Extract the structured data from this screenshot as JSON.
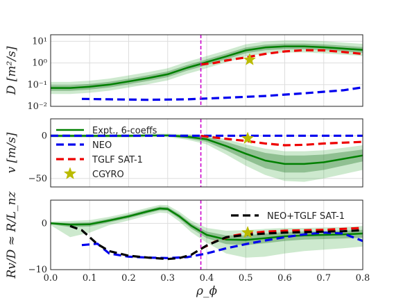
{
  "chart_data": [
    {
      "type": "line",
      "panel": "top",
      "ylabel": "D [m²/s]",
      "yscale": "log",
      "ylim": [
        0.01,
        20
      ],
      "yticks": [
        {
          "value": 10,
          "label": "10¹"
        },
        {
          "value": 1,
          "label": "10⁰"
        },
        {
          "value": 0.1,
          "label": "10⁻¹"
        },
        {
          "value": 0.01,
          "label": "10⁻²"
        }
      ],
      "xlim": [
        0.0,
        0.8
      ],
      "grid": true,
      "band_color": "#2e8b2e",
      "vline_x": 0.385,
      "series": [
        {
          "name": "Expt., 6-coeffs",
          "color": "#008000",
          "style": "solid",
          "x": [
            0.0,
            0.05,
            0.1,
            0.15,
            0.2,
            0.25,
            0.3,
            0.35,
            0.385,
            0.4,
            0.45,
            0.5,
            0.55,
            0.6,
            0.65,
            0.7,
            0.75,
            0.8
          ],
          "y": [
            0.07,
            0.07,
            0.08,
            0.1,
            0.14,
            0.2,
            0.3,
            0.6,
            0.9,
            1.1,
            2.0,
            3.8,
            5.2,
            5.8,
            5.8,
            5.3,
            4.6,
            4.0
          ],
          "band_inner_factor": 1.35,
          "band_outer_factor": 1.9
        },
        {
          "name": "NEO",
          "color": "#0000ee",
          "style": "dashed",
          "x": [
            0.08,
            0.15,
            0.25,
            0.35,
            0.45,
            0.55,
            0.65,
            0.75,
            0.8
          ],
          "y": [
            0.022,
            0.021,
            0.02,
            0.021,
            0.025,
            0.03,
            0.04,
            0.055,
            0.075
          ]
        },
        {
          "name": "TGLF SAT-1",
          "color": "#ee0000",
          "style": "dashed",
          "x": [
            0.385,
            0.42,
            0.45,
            0.5,
            0.55,
            0.6,
            0.65,
            0.7,
            0.75,
            0.8
          ],
          "y": [
            0.85,
            1.0,
            1.3,
            1.8,
            2.6,
            3.4,
            3.9,
            3.8,
            3.2,
            2.6
          ]
        }
      ],
      "markers": [
        {
          "name": "CGYRO",
          "x": 0.51,
          "y": 1.4,
          "color": "#bbbb00"
        }
      ]
    },
    {
      "type": "line",
      "panel": "middle",
      "ylabel": "v [m/s]",
      "ylim": [
        -60,
        20
      ],
      "yticks": [
        {
          "value": 0,
          "label": "0"
        },
        {
          "value": -50,
          "label": "−50"
        }
      ],
      "xlim": [
        0.0,
        0.8
      ],
      "grid": true,
      "vline_x": 0.385,
      "series": [
        {
          "name": "Expt., 6-coeffs",
          "color": "#008000",
          "style": "solid",
          "x": [
            0.0,
            0.1,
            0.2,
            0.25,
            0.3,
            0.35,
            0.4,
            0.45,
            0.5,
            0.55,
            0.6,
            0.65,
            0.7,
            0.75,
            0.8
          ],
          "y": [
            0,
            0,
            0,
            0.5,
            0.5,
            -1,
            -4,
            -12,
            -21,
            -29,
            -33,
            -33,
            -31,
            -27,
            -23
          ],
          "band_inner": [
            1,
            1,
            1,
            1.5,
            1.5,
            1,
            -1,
            -7,
            -14,
            -20,
            -23,
            -23,
            -22,
            -19,
            -16
          ],
          "band_inner_low": [
            -1,
            -1,
            -1,
            -0.5,
            -0.5,
            -3,
            -7,
            -17,
            -28,
            -38,
            -43,
            -43,
            -40,
            -35,
            -30
          ],
          "band_outer": [
            2,
            2,
            2,
            2.5,
            2.5,
            2,
            1,
            -4,
            -10,
            -15,
            -18,
            -18,
            -17,
            -14,
            -11
          ],
          "band_outer_low": [
            -2,
            -2,
            -2,
            -1.5,
            -1.5,
            -4.5,
            -10,
            -22,
            -35,
            -46,
            -53,
            -54,
            -50,
            -45,
            -40
          ]
        },
        {
          "name": "NEO",
          "color": "#0000ee",
          "style": "dashed",
          "x": [
            0.0,
            0.1,
            0.2,
            0.3,
            0.4,
            0.5,
            0.6,
            0.7,
            0.8
          ],
          "y": [
            0.2,
            0.2,
            0.2,
            0.2,
            0.2,
            0.2,
            0.2,
            0.2,
            0.2
          ]
        },
        {
          "name": "TGLF SAT-1",
          "color": "#ee0000",
          "style": "dashed",
          "x": [
            0.385,
            0.42,
            0.46,
            0.5,
            0.55,
            0.6,
            0.65,
            0.7,
            0.75,
            0.8
          ],
          "y": [
            0,
            -2,
            -4,
            -6,
            -9,
            -11,
            -10.5,
            -9,
            -8,
            -7
          ]
        }
      ],
      "markers": [
        {
          "name": "CGYRO",
          "x": 0.505,
          "y": -3,
          "color": "#bbbb00"
        }
      ],
      "legend": {
        "placement": "left",
        "entries": [
          {
            "label": "Expt., 6-coeffs",
            "color": "#008000",
            "kind": "solid"
          },
          {
            "label": "NEO",
            "color": "#0000ee",
            "kind": "dashed"
          },
          {
            "label": "TGLF SAT-1",
            "color": "#ee0000",
            "kind": "dashed"
          },
          {
            "label": "CGYRO",
            "color": "#bbbb00",
            "kind": "star"
          }
        ]
      }
    },
    {
      "type": "line",
      "panel": "bottom",
      "ylabel": "Rv/D ≈ R/L_nz",
      "xlabel": "ρ_ϕ",
      "ylim": [
        -10,
        5
      ],
      "yticks": [
        {
          "value": 0,
          "label": "0"
        },
        {
          "value": -10,
          "label": "−10"
        }
      ],
      "xlim": [
        0.0,
        0.8
      ],
      "xticks": [
        "0.0",
        "0.1",
        "0.2",
        "0.3",
        "0.4",
        "0.5",
        "0.6",
        "0.7",
        "0.8"
      ],
      "grid": true,
      "vline_x": 0.385,
      "series": [
        {
          "name": "Expt., 6-coeffs",
          "color": "#008000",
          "style": "solid",
          "x": [
            0.0,
            0.05,
            0.1,
            0.15,
            0.2,
            0.25,
            0.28,
            0.3,
            0.33,
            0.36,
            0.4,
            0.45,
            0.5,
            0.55,
            0.6,
            0.65,
            0.7,
            0.75,
            0.8
          ],
          "y": [
            0,
            -0.3,
            -0.2,
            0.6,
            1.5,
            2.6,
            3.2,
            3.1,
            1.5,
            -0.5,
            -2.5,
            -3.5,
            -3.6,
            -3.2,
            -2.8,
            -2.6,
            -2.5,
            -2.4,
            -2.2
          ],
          "band_inner_up": [
            0.2,
            0.1,
            0.2,
            1.0,
            1.9,
            3.0,
            3.6,
            3.5,
            2.0,
            0,
            -1.8,
            -2.6,
            -2.6,
            -2.2,
            -1.9,
            -1.8,
            -1.7,
            -1.6,
            -1.4
          ],
          "band_inner_low": [
            -0.2,
            -0.8,
            -0.7,
            0.2,
            1.1,
            2.2,
            2.8,
            2.7,
            1.0,
            -1.1,
            -3.2,
            -4.5,
            -4.7,
            -4.3,
            -3.8,
            -3.5,
            -3.4,
            -3.3,
            -3.1
          ],
          "band_outer_up": [
            0.4,
            0.5,
            0.7,
            1.4,
            2.3,
            3.4,
            4.0,
            3.9,
            2.5,
            0.6,
            -1.0,
            -1.6,
            -1.5,
            -1.2,
            -1.0,
            -1.0,
            -0.9,
            -0.8,
            -0.6
          ],
          "band_outer_low": [
            -0.4,
            -3.0,
            -2.0,
            -0.4,
            0.6,
            1.7,
            2.3,
            2.2,
            0.4,
            -1.9,
            -4.2,
            -6.5,
            -7.4,
            -7.2,
            -6.5,
            -6.0,
            -5.7,
            -5.4,
            -5.0
          ]
        },
        {
          "name": "NEO",
          "color": "#0000ee",
          "style": "dashed",
          "x": [
            0.08,
            0.12,
            0.15,
            0.2,
            0.25,
            0.3,
            0.35,
            0.4,
            0.45,
            0.5,
            0.55,
            0.6,
            0.65,
            0.7,
            0.75,
            0.8
          ],
          "y": [
            -4.7,
            -4.4,
            -6.5,
            -7.2,
            -7.4,
            -7.5,
            -7.3,
            -6.5,
            -5.4,
            -4.5,
            -3.7,
            -3.0,
            -2.4,
            -2.0,
            -2.2,
            -3.8
          ]
        },
        {
          "name": "TGLF SAT-1",
          "color": "#ee0000",
          "style": "dashed",
          "x": [
            0.385,
            0.42,
            0.46,
            0.5,
            0.55,
            0.6,
            0.65,
            0.7,
            0.75,
            0.8
          ],
          "y": [
            -5.5,
            -4.0,
            -2.8,
            -2.2,
            -1.8,
            -1.6,
            -1.5,
            -1.4,
            -1.2,
            -1.0
          ]
        },
        {
          "name": "NEO+TGLF SAT-1",
          "color": "#000000",
          "style": "dashed",
          "x": [
            0.05,
            0.08,
            0.12,
            0.15,
            0.2,
            0.25,
            0.3,
            0.33,
            0.36,
            0.4,
            0.45,
            0.5,
            0.55,
            0.6,
            0.65,
            0.7,
            0.75,
            0.8
          ],
          "y": [
            -0.6,
            -1.5,
            -4.5,
            -6.0,
            -7.0,
            -7.4,
            -7.7,
            -7.5,
            -6.8,
            -4.8,
            -3.0,
            -2.5,
            -2.2,
            -2.0,
            -1.9,
            -1.8,
            -1.7,
            -1.5
          ]
        }
      ],
      "markers": [
        {
          "name": "CGYRO",
          "x": 0.505,
          "y": -2.0,
          "color": "#bbbb00"
        }
      ],
      "legend": {
        "placement": "top-right",
        "entries": [
          {
            "label": "NEO+TGLF SAT-1",
            "color": "#000000",
            "kind": "dashed"
          }
        ]
      }
    }
  ]
}
